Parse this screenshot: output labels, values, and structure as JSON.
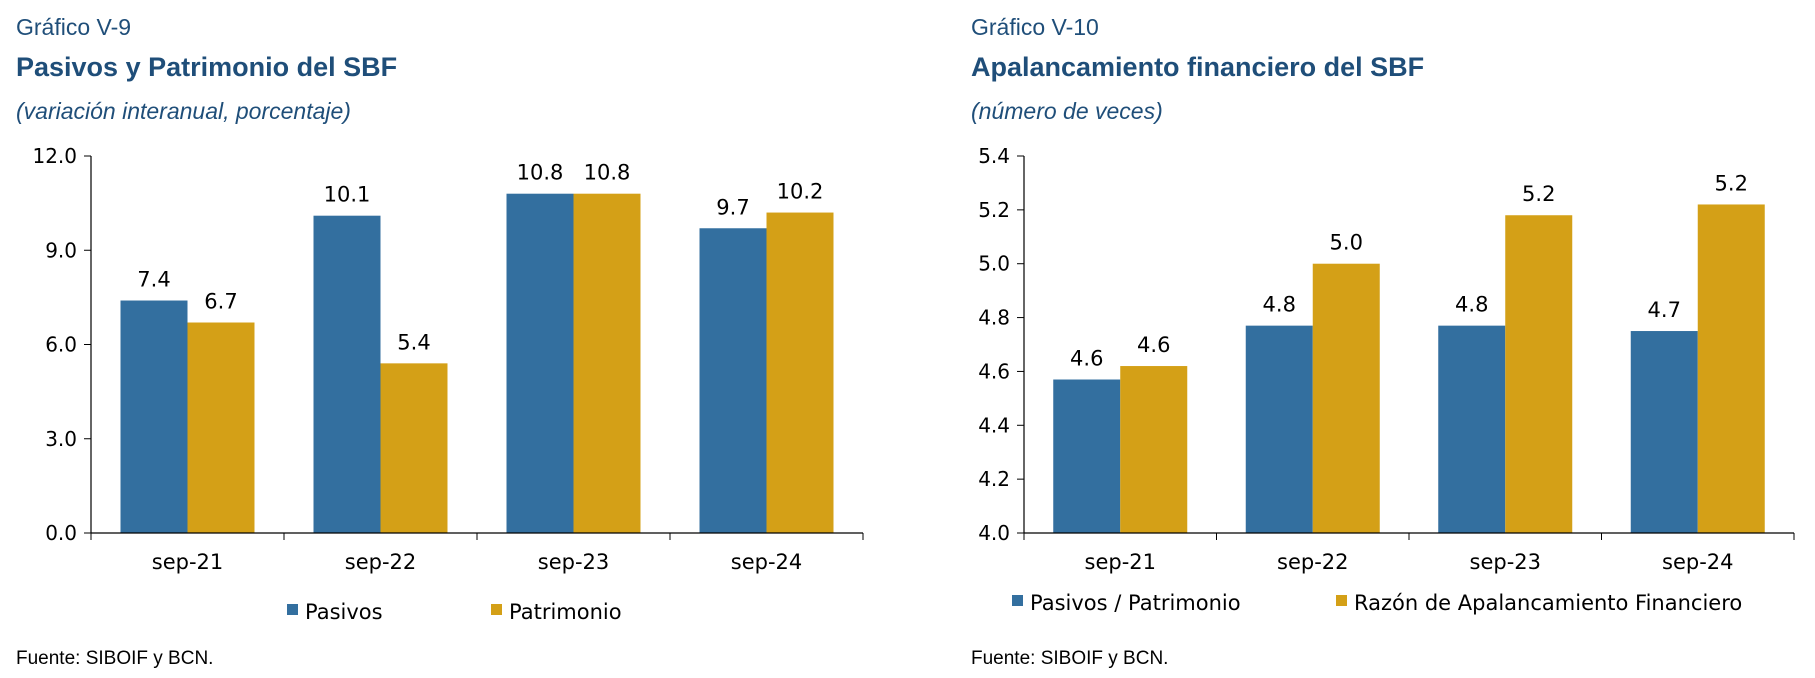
{
  "charts": [
    {
      "figure_label": "Gráfico V-9",
      "title": "Pasivos y Patrimonio del SBF",
      "subtitle": "(variación interanual, porcentaje)",
      "source": "Fuente: SIBOIF y BCN."
    },
    {
      "figure_label": "Gráfico V-10",
      "title": "Apalancamiento financiero del SBF",
      "subtitle": "(número de veces)",
      "source": "Fuente: SIBOIF y BCN."
    }
  ],
  "chart_data": [
    {
      "type": "bar",
      "categories": [
        "sep-21",
        "sep-22",
        "sep-23",
        "sep-24"
      ],
      "series": [
        {
          "name": "Pasivos",
          "values": [
            7.4,
            10.1,
            10.8,
            9.7
          ],
          "color": "#336f9f"
        },
        {
          "name": "Patrimonio",
          "values": [
            6.7,
            5.4,
            10.8,
            10.2
          ],
          "color": "#d4a017"
        }
      ],
      "ylim": [
        0,
        12
      ],
      "yticks": [
        "0.0",
        "3.0",
        "6.0",
        "9.0",
        "12.0"
      ],
      "ytick_values": [
        0,
        3,
        6,
        9,
        12
      ],
      "data_labels": [
        [
          "7.4",
          "10.1",
          "10.8",
          "9.7"
        ],
        [
          "6.7",
          "5.4",
          "10.8",
          "10.2"
        ]
      ],
      "grid": false,
      "legend": "bottom"
    },
    {
      "type": "bar",
      "categories": [
        "sep-21",
        "sep-22",
        "sep-23",
        "sep-24"
      ],
      "series": [
        {
          "name": "Pasivos / Patrimonio",
          "values": [
            4.57,
            4.77,
            4.77,
            4.75
          ],
          "color": "#336f9f"
        },
        {
          "name": "Razón de Apalancamiento Financiero",
          "values": [
            4.62,
            5.0,
            5.18,
            5.22
          ],
          "color": "#d4a017"
        }
      ],
      "ylim": [
        4.0,
        5.4
      ],
      "yticks": [
        "4.0",
        "4.2",
        "4.4",
        "4.6",
        "4.8",
        "5.0",
        "5.2",
        "5.4"
      ],
      "ytick_values": [
        4.0,
        4.2,
        4.4,
        4.6,
        4.8,
        5.0,
        5.2,
        5.4
      ],
      "data_labels": [
        [
          "4.6",
          "4.8",
          "4.8",
          "4.7"
        ],
        [
          "4.6",
          "5.0",
          "5.2",
          "5.2"
        ]
      ],
      "grid": false,
      "legend": "bottom"
    }
  ]
}
